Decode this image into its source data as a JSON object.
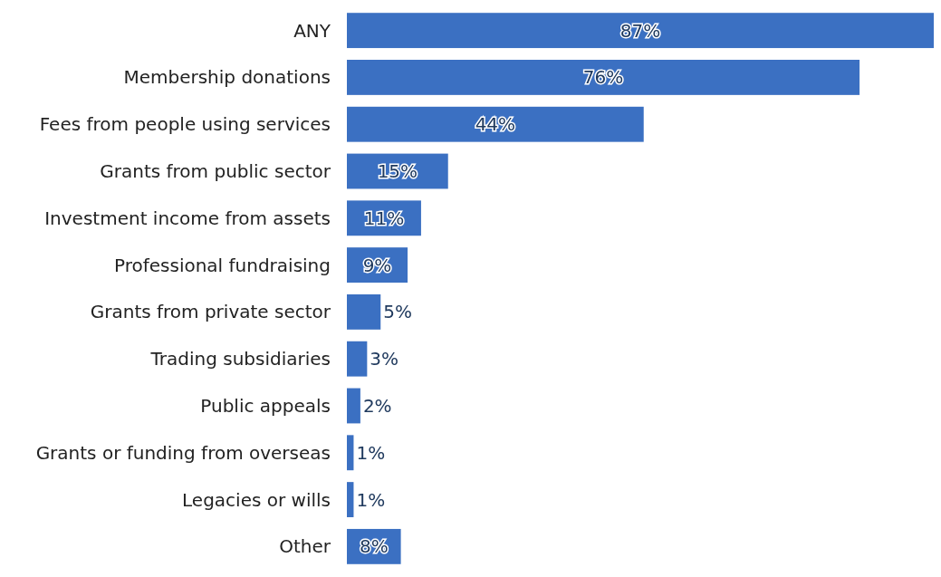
{
  "chart_data": {
    "type": "bar",
    "orientation": "horizontal",
    "categories": [
      "ANY",
      "Membership donations",
      "Fees from people using services",
      "Grants from public sector",
      "Investment income from assets",
      "Professional fundraising",
      "Grants from private sector",
      "Trading subsidiaries",
      "Public appeals",
      "Grants or funding from overseas",
      "Legacies or wills",
      "Other"
    ],
    "values": [
      87,
      76,
      44,
      15,
      11,
      9,
      5,
      3,
      2,
      1,
      1,
      8
    ],
    "value_labels": [
      "87%",
      "76%",
      "44%",
      "15%",
      "11%",
      "9%",
      "5%",
      "3%",
      "2%",
      "1%",
      "1%",
      "8%"
    ],
    "color": "#3b70c2"
  }
}
